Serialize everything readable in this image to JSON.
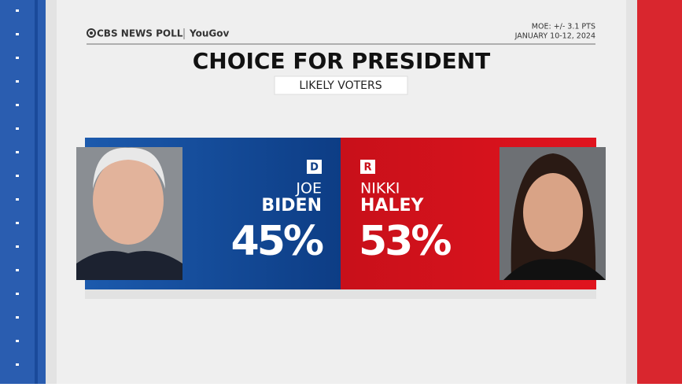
{
  "header": {
    "source": "CBS NEWS POLL",
    "partner": "YouGov",
    "moe": "MOE: +/- 3.1 PTS",
    "dates": "JANUARY 10-12, 2024"
  },
  "title": "CHOICE FOR PRESIDENT",
  "subtitle": "LIKELY VOTERS",
  "candidates": [
    {
      "party": "D",
      "first_name": "JOE",
      "last_name": "BIDEN",
      "share": "45%"
    },
    {
      "party": "R",
      "first_name": "NIKKI",
      "last_name": "HALEY",
      "share": "53%"
    }
  ]
}
